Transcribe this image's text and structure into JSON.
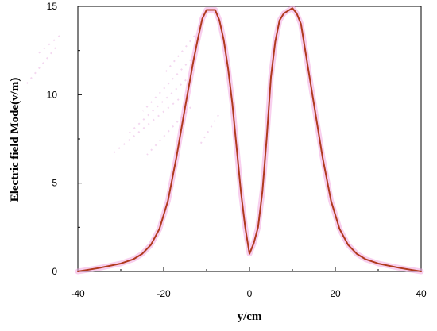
{
  "chart_data": {
    "type": "line",
    "title": "",
    "xlabel": "y/cm",
    "ylabel": "Electric field Mode(v/m)",
    "xlim": [
      -40,
      40
    ],
    "ylim": [
      0,
      15
    ],
    "x_ticks": [
      -40,
      -20,
      0,
      20,
      40
    ],
    "y_ticks": [
      0,
      5,
      10,
      15
    ],
    "grid": false,
    "legend": "none",
    "line_color": "#b03a1e",
    "glow_color": "#f2a7e0",
    "series": [
      {
        "x": [
          -40,
          -35,
          -30,
          -27,
          -25,
          -23,
          -21,
          -19,
          -17,
          -15,
          -13,
          -12,
          -11,
          -10,
          -9,
          -8,
          -7,
          -6,
          -5,
          -4,
          -3,
          -2,
          -1,
          0,
          1,
          2,
          3,
          4,
          5,
          6,
          7,
          8,
          9,
          10,
          11,
          12,
          13,
          15,
          17,
          19,
          21,
          23,
          25,
          27,
          30,
          35,
          40
        ],
        "y": [
          0.0,
          0.2,
          0.45,
          0.7,
          1.0,
          1.5,
          2.4,
          4.0,
          6.5,
          9.3,
          12.0,
          13.2,
          14.3,
          14.8,
          14.8,
          14.8,
          14.2,
          13.1,
          11.5,
          9.5,
          7.0,
          4.5,
          2.5,
          1.0,
          1.6,
          2.5,
          4.5,
          7.5,
          11.0,
          13.0,
          14.2,
          14.6,
          14.75,
          14.9,
          14.6,
          14.0,
          12.5,
          9.5,
          6.5,
          4.0,
          2.4,
          1.5,
          1.0,
          0.7,
          0.45,
          0.2,
          0.0
        ]
      }
    ]
  }
}
